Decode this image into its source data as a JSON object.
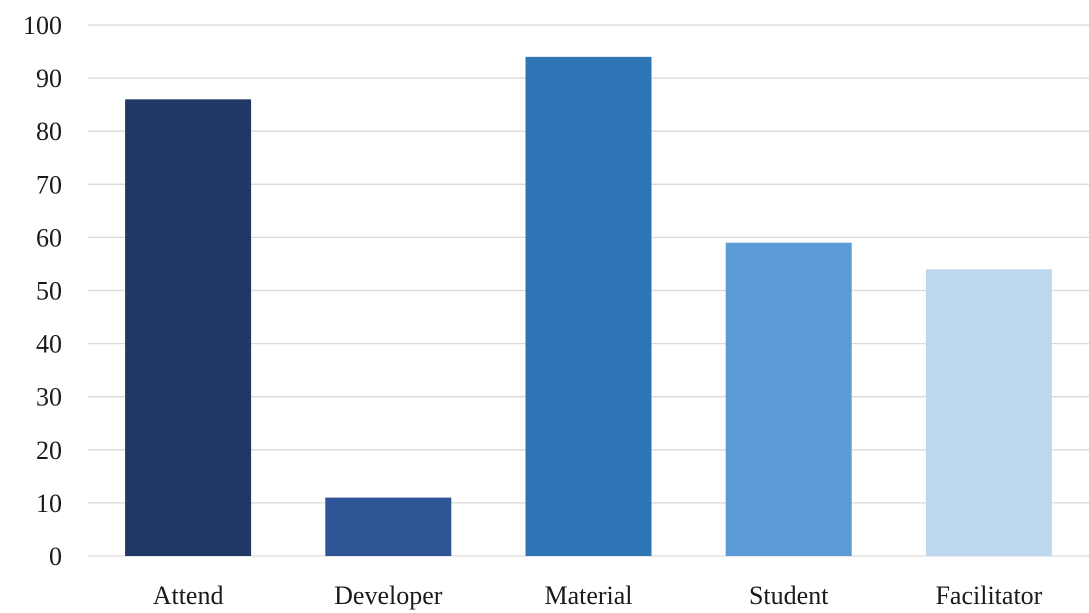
{
  "chart_data": {
    "type": "bar",
    "title": "",
    "xlabel": "",
    "ylabel": "",
    "categories": [
      "Attend",
      "Developer",
      "Material",
      "Student",
      "Facilitator"
    ],
    "values": [
      86,
      11,
      94,
      59,
      54
    ],
    "colors": [
      "#1f3864",
      "#2f5597",
      "#2e75b6",
      "#5b9bd5",
      "#bdd7ee"
    ],
    "ylim": [
      0,
      100
    ],
    "yticks": [
      "0",
      "10",
      "20",
      "30",
      "40",
      "50",
      "60",
      "70",
      "80",
      "90",
      "100"
    ],
    "grid": true,
    "legend": "none"
  }
}
